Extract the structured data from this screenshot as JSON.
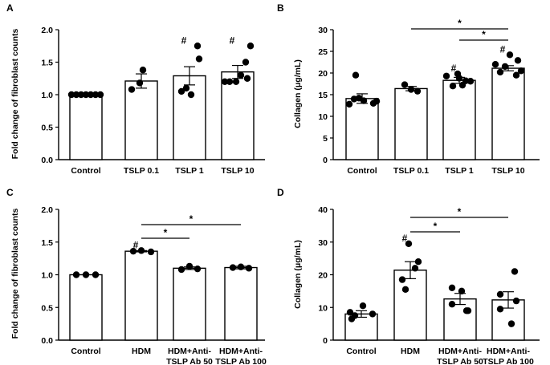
{
  "chart_data": [
    {
      "panel": "A",
      "type": "bar",
      "ylabel": "Fold change of fibroblast counts",
      "ylim": [
        0,
        2.0
      ],
      "yticks": [
        "0.0",
        "0.5",
        "1.0",
        "1.5",
        "2.0"
      ],
      "categories": [
        [
          "Control"
        ],
        [
          "TSLP 0.1"
        ],
        [
          "TSLP 1"
        ],
        [
          "TSLP 10"
        ]
      ],
      "values": [
        1.0,
        1.21,
        1.29,
        1.35
      ],
      "errors": [
        0.0,
        0.11,
        0.14,
        0.1
      ],
      "points": [
        [
          1.0,
          1.0,
          1.0,
          1.0,
          1.0,
          1.0,
          1.0
        ],
        [
          1.08,
          1.38,
          1.18
        ],
        [
          1.05,
          1.0,
          1.1,
          1.75,
          1.55
        ],
        [
          1.2,
          1.2,
          1.2,
          1.3,
          1.5,
          1.75,
          1.25
        ]
      ],
      "hash_marks": [
        null,
        null,
        "#",
        "#"
      ],
      "significance": []
    },
    {
      "panel": "B",
      "type": "bar",
      "ylabel": "Collagen (μg/mL)",
      "ylim": [
        0,
        30
      ],
      "yticks": [
        "0",
        "5",
        "10",
        "15",
        "20",
        "25",
        "30"
      ],
      "categories": [
        [
          "Control"
        ],
        [
          "TSLP 0.1"
        ],
        [
          "TSLP 1"
        ],
        [
          "TSLP 10"
        ]
      ],
      "values": [
        14.1,
        16.4,
        18.3,
        21.1
      ],
      "errors": [
        1.1,
        0.5,
        0.7,
        0.6
      ],
      "points": [
        [
          12.8,
          14.0,
          14.2,
          13.6,
          19.5,
          13.0,
          13.5
        ],
        [
          17.3,
          15.8,
          16.2
        ],
        [
          19.3,
          17.0,
          18.8,
          18.2,
          18.1,
          17.2,
          19.8
        ],
        [
          22.0,
          20.2,
          21.5,
          24.2,
          19.5,
          22.9,
          20.5
        ]
      ],
      "hash_marks": [
        null,
        null,
        "#",
        "#"
      ],
      "significance": [
        {
          "from": 1,
          "to": 3,
          "label": "*"
        },
        {
          "from": 2,
          "to": 3,
          "label": "*"
        }
      ]
    },
    {
      "panel": "C",
      "type": "bar",
      "ylabel": "Fold change of fibroblast counts",
      "ylim": [
        0,
        2.0
      ],
      "yticks": [
        "0.0",
        "0.5",
        "1.0",
        "1.5",
        "2.0"
      ],
      "categories": [
        [
          "Control"
        ],
        [
          "HDM"
        ],
        [
          "HDM+Anti-",
          "TSLP Ab 50"
        ],
        [
          "HDM+Anti-",
          "TSLP Ab 100"
        ]
      ],
      "values": [
        1.0,
        1.36,
        1.1,
        1.11
      ],
      "errors": [
        0.0,
        0.01,
        0.02,
        0.02
      ],
      "points": [
        [
          1.0,
          1.0,
          1.0
        ],
        [
          1.36,
          1.37,
          1.35
        ],
        [
          1.08,
          1.13,
          1.09
        ],
        [
          1.11,
          1.12,
          1.1
        ]
      ],
      "hash_marks": [
        null,
        "#",
        null,
        null
      ],
      "significance": [
        {
          "from": 1,
          "to": 2,
          "label": "*"
        },
        {
          "from": 1,
          "to": 3,
          "label": "*"
        }
      ]
    },
    {
      "panel": "D",
      "type": "bar",
      "ylabel": "Collagen (μg/mL)",
      "ylim": [
        0,
        40
      ],
      "yticks": [
        "0",
        "10",
        "20",
        "30",
        "40"
      ],
      "categories": [
        [
          "Control"
        ],
        [
          "HDM"
        ],
        [
          "HDM+Anti-",
          "TSLP Ab 50"
        ],
        [
          "HDM+Anti-",
          "TSLP Ab 100"
        ]
      ],
      "values": [
        8.0,
        21.4,
        12.6,
        12.3
      ],
      "errors": [
        1.0,
        2.6,
        1.7,
        2.5
      ],
      "points": [
        [
          8.5,
          7.5,
          10.5,
          6.5,
          8.0
        ],
        [
          29.5,
          18.5,
          24.0,
          22.0,
          15.5
        ],
        [
          16.0,
          15.0,
          11.0,
          9.0,
          9.0
        ],
        [
          21.0,
          14.0,
          12.0,
          9.5,
          5.0
        ]
      ],
      "hash_marks": [
        null,
        "#",
        null,
        null
      ],
      "significance": [
        {
          "from": 1,
          "to": 2,
          "label": "*"
        },
        {
          "from": 1,
          "to": 3,
          "label": "*"
        }
      ]
    }
  ]
}
